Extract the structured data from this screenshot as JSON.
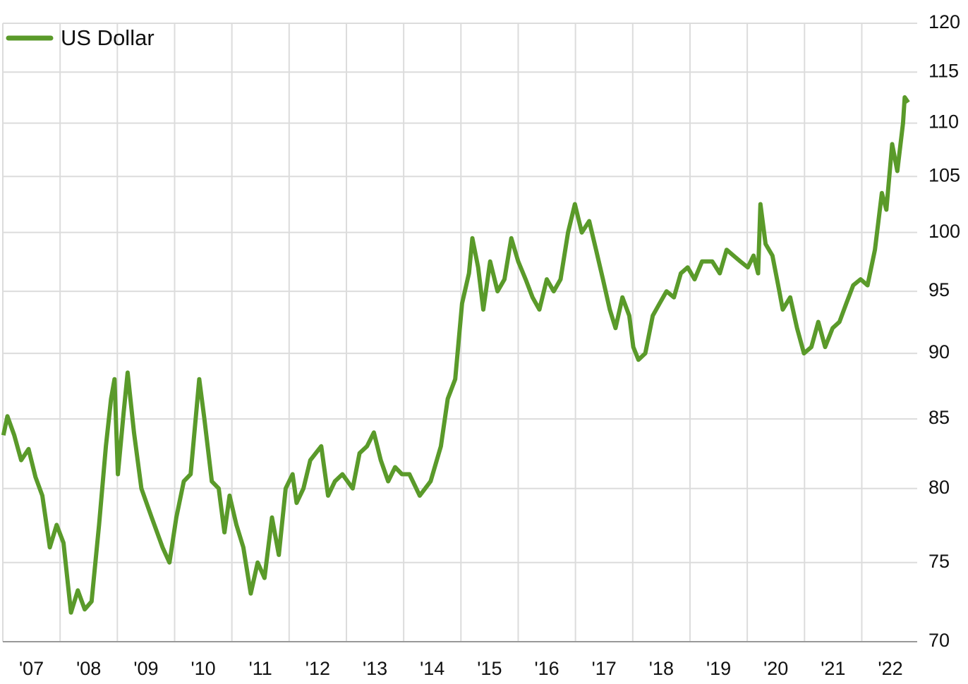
{
  "chart_data": {
    "type": "line",
    "log_scale": true,
    "grid": true,
    "legend": "upper left",
    "x": [
      2007.01,
      2007.08,
      2007.2,
      2007.32,
      2007.45,
      2007.57,
      2007.69,
      2007.82,
      2007.94,
      2008.06,
      2008.19,
      2008.31,
      2008.43,
      2008.55,
      2008.68,
      2008.8,
      2008.89,
      2008.95,
      2009.01,
      2009.11,
      2009.18,
      2009.29,
      2009.42,
      2009.6,
      2009.79,
      2009.91,
      2010.03,
      2010.16,
      2010.28,
      2010.43,
      2010.52,
      2010.65,
      2010.77,
      2010.87,
      2010.96,
      2011.08,
      2011.2,
      2011.33,
      2011.45,
      2011.57,
      2011.7,
      2011.82,
      2011.94,
      2012.06,
      2012.13,
      2012.25,
      2012.37,
      2012.56,
      2012.68,
      2012.8,
      2012.93,
      2013.11,
      2013.23,
      2013.36,
      2013.48,
      2013.6,
      2013.73,
      2013.85,
      2013.97,
      2014.1,
      2014.28,
      2014.47,
      2014.65,
      2014.77,
      2014.9,
      2015.02,
      2015.14,
      2015.2,
      2015.3,
      2015.39,
      2015.51,
      2015.64,
      2015.76,
      2015.88,
      2016.0,
      2016.13,
      2016.25,
      2016.37,
      2016.5,
      2016.62,
      2016.74,
      2016.87,
      2016.99,
      2017.11,
      2017.24,
      2017.36,
      2017.48,
      2017.6,
      2017.7,
      2017.82,
      2017.94,
      2018.01,
      2018.1,
      2018.22,
      2018.35,
      2018.47,
      2018.59,
      2018.72,
      2018.84,
      2018.96,
      2019.08,
      2019.21,
      2019.39,
      2019.52,
      2019.64,
      2019.76,
      2019.88,
      2020.01,
      2020.11,
      2020.19,
      2020.23,
      2020.32,
      2020.44,
      2020.56,
      2020.62,
      2020.75,
      2020.87,
      2020.99,
      2021.12,
      2021.24,
      2021.36,
      2021.49,
      2021.61,
      2021.73,
      2021.85,
      2021.98,
      2022.1,
      2022.23,
      2022.35,
      2022.43,
      2022.53,
      2022.62,
      2022.72,
      2022.75,
      2022.81
    ],
    "series": [
      {
        "name": "US Dollar",
        "color": "#5a9a2a",
        "values": [
          83.8,
          85.2,
          83.8,
          82,
          82.8,
          80.8,
          79.5,
          76,
          77.5,
          76.3,
          71.8,
          73.2,
          72,
          72.5,
          77.5,
          83,
          86.5,
          88,
          81,
          85.5,
          88.5,
          84,
          80,
          78,
          76,
          75,
          78,
          80.5,
          81,
          88,
          85,
          80.5,
          80,
          77,
          79.5,
          77.5,
          76,
          73,
          75,
          74,
          78,
          75.5,
          80,
          81,
          79,
          80,
          82,
          83,
          79.5,
          80.5,
          81,
          80,
          82.5,
          83,
          84,
          82,
          80.5,
          81.5,
          81,
          81,
          79.5,
          80.5,
          83,
          86.5,
          88,
          94,
          96.5,
          99.5,
          97,
          93.5,
          97.5,
          95,
          96,
          99.5,
          97.5,
          96,
          94.5,
          93.5,
          96,
          95,
          96,
          100,
          102.5,
          100,
          101,
          98.5,
          96,
          93.5,
          92,
          94.5,
          93,
          90.5,
          89.5,
          90,
          93,
          94,
          95,
          94.5,
          96.5,
          97,
          96,
          97.5,
          97.5,
          96.5,
          98.5,
          98,
          97.5,
          97,
          98,
          96.5,
          102.5,
          99,
          98,
          95,
          93.5,
          94.5,
          92,
          90,
          90.5,
          92.5,
          90.5,
          92,
          92.5,
          94,
          95.5,
          96,
          95.5,
          98.5,
          103.5,
          102,
          108,
          105.5,
          110,
          112.5,
          112
        ]
      }
    ],
    "xlim": [
      2007,
      2022.82
    ],
    "xticks": [
      {
        "value": 2007,
        "label": "'07"
      },
      {
        "value": 2008,
        "label": "'08"
      },
      {
        "value": 2009,
        "label": "'09"
      },
      {
        "value": 2010,
        "label": "'10"
      },
      {
        "value": 2011,
        "label": "'11"
      },
      {
        "value": 2012,
        "label": "'12"
      },
      {
        "value": 2013,
        "label": "'13"
      },
      {
        "value": 2014,
        "label": "'14"
      },
      {
        "value": 2015,
        "label": "'15"
      },
      {
        "value": 2016,
        "label": "'16"
      },
      {
        "value": 2017,
        "label": "'17"
      },
      {
        "value": 2018,
        "label": "'18"
      },
      {
        "value": 2019,
        "label": "'19"
      },
      {
        "value": 2020,
        "label": "'20"
      },
      {
        "value": 2021,
        "label": "'21"
      },
      {
        "value": 2022,
        "label": "'22"
      }
    ],
    "ylim": [
      70,
      120
    ],
    "yticks": [
      70,
      75,
      80,
      85,
      90,
      95,
      100,
      105,
      110,
      115,
      120
    ]
  }
}
